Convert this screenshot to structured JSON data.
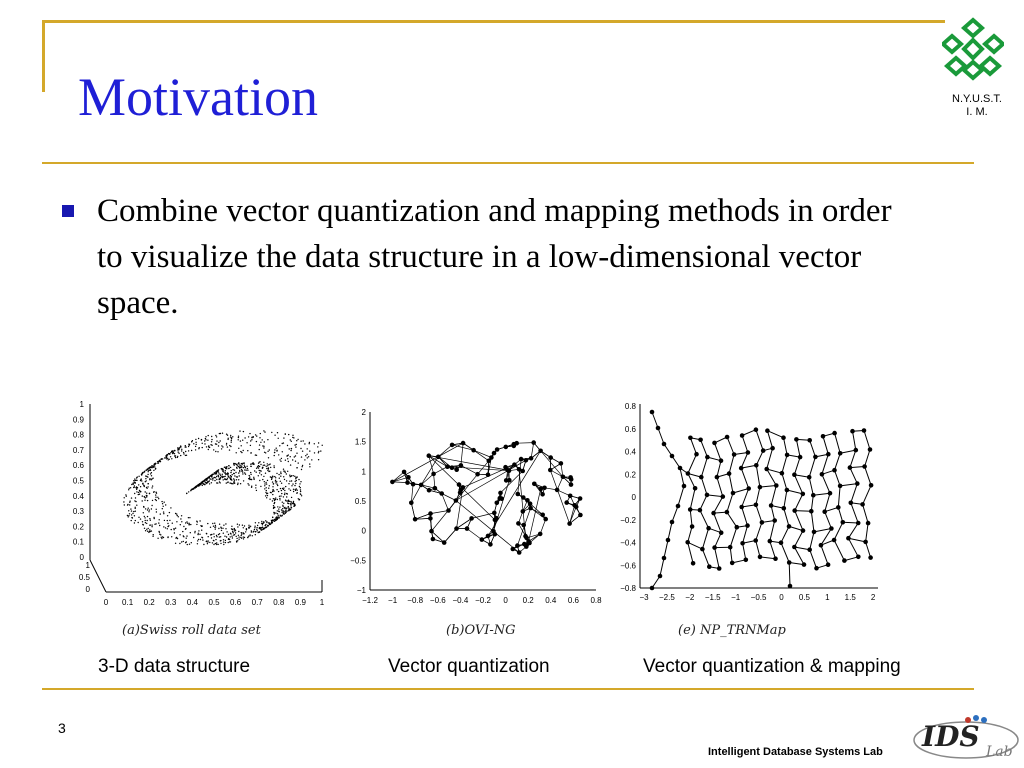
{
  "slide": {
    "title": "Motivation",
    "page_number": "3",
    "footer": "Intelligent Database Systems Lab",
    "logo_text_line1": "N.Y.U.S.T.",
    "logo_text_line2": "I. M.",
    "lab_logo_text": "IDS Lab"
  },
  "bullet": {
    "text": "Combine vector quantization and mapping methods in order to visualize the data structure in a low-dimensional vector space."
  },
  "figures": [
    {
      "subcaption": "(a)Swiss roll data set",
      "caption": "3-D data structure",
      "ticks_z": [
        "1",
        "0.9",
        "0.8",
        "0.7",
        "0.6",
        "0.5",
        "0.4",
        "0.3",
        "0.2",
        "0.1",
        "0"
      ],
      "ticks_y": [
        "1",
        "0.5",
        "0"
      ],
      "ticks_x": [
        "0",
        "0.1",
        "0.2",
        "0.3",
        "0.4",
        "0.5",
        "0.6",
        "0.7",
        "0.8",
        "0.9",
        "1"
      ]
    },
    {
      "subcaption": "(b)OVI-NG",
      "caption": "Vector quantization",
      "ticks_y": [
        "2",
        "1.5",
        "1",
        "0.5",
        "0",
        "−0.5",
        "−1"
      ],
      "ticks_x": [
        "−1.2",
        "−1",
        "−0.8",
        "−0.6",
        "−0.4",
        "−0.2",
        "0",
        "0.2",
        "0.4",
        "0.6",
        "0.8"
      ]
    },
    {
      "subcaption": "(e) NP_TRNMap",
      "caption": "Vector quantization & mapping",
      "ticks_y": [
        "0.8",
        "0.6",
        "0.4",
        "0.2",
        "0",
        "−0.2",
        "−0.4",
        "−0.6",
        "−0.8"
      ],
      "ticks_x": [
        "−3",
        "−2.5",
        "−2",
        "−1.5",
        "−1",
        "−0.5",
        "0",
        "0.5",
        "1",
        "1.5",
        "2"
      ]
    }
  ],
  "colors": {
    "title": "#1f1fd6",
    "rule": "#d4a82a",
    "bullet": "#1818b0",
    "logo": "#1a9a3a"
  }
}
